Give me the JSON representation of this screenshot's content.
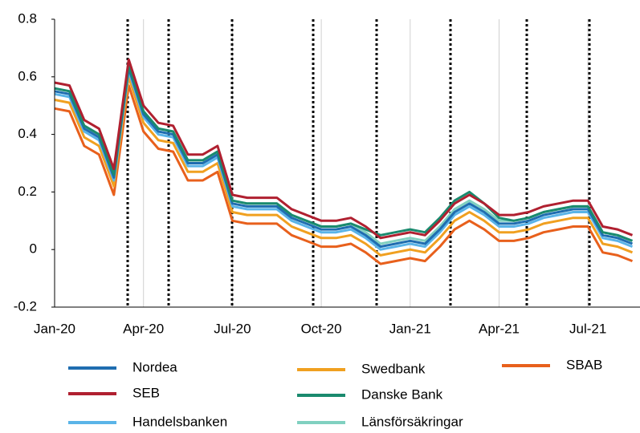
{
  "chart_data": {
    "type": "line",
    "categories": [
      "Jan-20",
      null,
      null,
      null,
      null,
      null,
      "Apr-20",
      null,
      null,
      null,
      null,
      null,
      "Jul-20",
      null,
      null,
      null,
      null,
      null,
      "Oct-20",
      null,
      null,
      null,
      null,
      null,
      "Jan-21",
      null,
      null,
      null,
      null,
      null,
      "Apr-21",
      null,
      null,
      null,
      null,
      null,
      "Jul-21",
      null,
      null,
      null
    ],
    "ylim": [
      -0.2,
      0.8
    ],
    "yticks": [
      -0.2,
      0,
      0.2,
      0.4,
      0.6,
      0.8
    ],
    "grid": true,
    "series": [
      {
        "name": "Nordea",
        "color": "#1f6db0",
        "values": [
          0.55,
          0.54,
          0.42,
          0.39,
          0.25,
          0.63,
          0.47,
          0.41,
          0.4,
          0.3,
          0.3,
          0.33,
          0.16,
          0.15,
          0.15,
          0.15,
          0.11,
          0.09,
          0.07,
          0.07,
          0.08,
          0.05,
          0.01,
          0.02,
          0.03,
          0.02,
          0.07,
          0.13,
          0.16,
          0.13,
          0.09,
          0.09,
          0.1,
          0.12,
          0.13,
          0.14,
          0.14,
          0.05,
          0.04,
          0.02
        ]
      },
      {
        "name": "SEB",
        "color": "#b02030",
        "values": [
          0.58,
          0.57,
          0.45,
          0.42,
          0.28,
          0.66,
          0.5,
          0.44,
          0.43,
          0.33,
          0.33,
          0.36,
          0.19,
          0.18,
          0.18,
          0.18,
          0.14,
          0.12,
          0.1,
          0.1,
          0.11,
          0.08,
          0.04,
          0.05,
          0.06,
          0.05,
          0.1,
          0.16,
          0.19,
          0.16,
          0.12,
          0.12,
          0.13,
          0.15,
          0.16,
          0.17,
          0.17,
          0.08,
          0.07,
          0.05
        ]
      },
      {
        "name": "Handelsbanken",
        "color": "#5ab4e8",
        "values": [
          0.54,
          0.53,
          0.41,
          0.38,
          0.24,
          0.62,
          0.46,
          0.4,
          0.39,
          0.29,
          0.29,
          0.32,
          0.15,
          0.14,
          0.14,
          0.14,
          0.1,
          0.08,
          0.06,
          0.06,
          0.07,
          0.04,
          0.0,
          0.01,
          0.02,
          0.01,
          0.06,
          0.12,
          0.15,
          0.12,
          0.08,
          0.08,
          0.09,
          0.11,
          0.12,
          0.13,
          0.13,
          0.04,
          0.03,
          0.01
        ]
      },
      {
        "name": "Swedbank",
        "color": "#f0a020",
        "values": [
          0.52,
          0.51,
          0.39,
          0.36,
          0.22,
          0.6,
          0.44,
          0.38,
          0.37,
          0.27,
          0.27,
          0.3,
          0.13,
          0.12,
          0.12,
          0.12,
          0.08,
          0.06,
          0.04,
          0.04,
          0.05,
          0.02,
          -0.02,
          -0.01,
          0.0,
          -0.01,
          0.04,
          0.1,
          0.13,
          0.1,
          0.06,
          0.06,
          0.07,
          0.09,
          0.1,
          0.11,
          0.11,
          0.02,
          0.01,
          -0.01
        ]
      },
      {
        "name": "Danske Bank",
        "color": "#1a8a6e",
        "values": [
          0.56,
          0.55,
          0.43,
          0.4,
          0.26,
          0.64,
          0.48,
          0.42,
          0.41,
          0.31,
          0.31,
          0.34,
          0.17,
          0.16,
          0.16,
          0.16,
          0.12,
          0.1,
          0.08,
          0.08,
          0.09,
          0.07,
          0.05,
          0.06,
          0.07,
          0.06,
          0.11,
          0.17,
          0.2,
          0.16,
          0.11,
          0.1,
          0.11,
          0.13,
          0.14,
          0.15,
          0.15,
          0.06,
          0.05,
          0.03
        ]
      },
      {
        "name": "Länsförsäkringar",
        "color": "#80d0c0",
        "values": [
          0.56,
          0.55,
          0.43,
          0.4,
          0.26,
          0.64,
          0.48,
          0.42,
          0.41,
          0.31,
          0.31,
          0.34,
          0.17,
          0.16,
          0.16,
          0.16,
          0.12,
          0.1,
          0.08,
          0.08,
          0.09,
          0.06,
          0.02,
          0.03,
          0.04,
          0.03,
          0.08,
          0.14,
          0.17,
          0.14,
          0.1,
          0.1,
          0.11,
          0.13,
          0.14,
          0.15,
          0.15,
          0.06,
          0.05,
          0.03
        ]
      },
      {
        "name": "SBAB",
        "color": "#e8601c",
        "values": [
          0.49,
          0.48,
          0.36,
          0.33,
          0.19,
          0.57,
          0.41,
          0.35,
          0.34,
          0.24,
          0.24,
          0.27,
          0.1,
          0.09,
          0.09,
          0.09,
          0.05,
          0.03,
          0.01,
          0.01,
          0.02,
          -0.01,
          -0.05,
          -0.04,
          -0.03,
          -0.04,
          0.01,
          0.07,
          0.1,
          0.07,
          0.03,
          0.03,
          0.04,
          0.06,
          0.07,
          0.08,
          0.08,
          -0.01,
          -0.02,
          -0.04
        ]
      }
    ]
  }
}
